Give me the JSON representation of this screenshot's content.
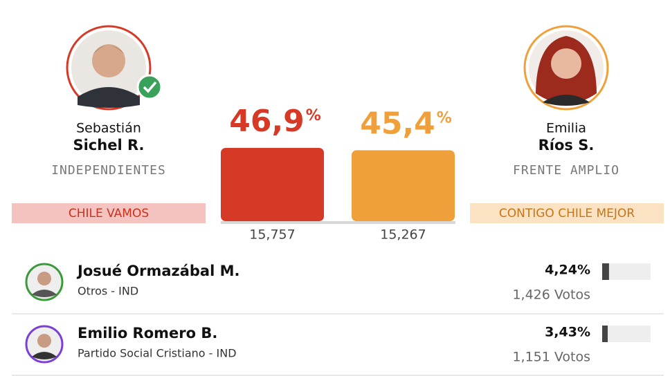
{
  "main": [
    {
      "first": "Sebastián",
      "last": "Sichel R.",
      "party": "INDEPENDIENTES",
      "coalition": "CHILE VAMOS",
      "percent": 46.9,
      "percent_label": "46,9",
      "votes": "15,757",
      "color": "#d63a26"
    },
    {
      "first": "Emilia",
      "last": "Ríos S.",
      "party": "FRENTE AMPLIO",
      "coalition": "CONTIGO CHILE MEJOR",
      "percent": 45.4,
      "percent_label": "45,4",
      "votes": "15,267",
      "color": "#f0a03a"
    }
  ],
  "percent_sign": "%",
  "others": [
    {
      "name": "Josué Ormazábal M.",
      "party": "Otros - IND",
      "percent": 4.24,
      "percent_label": "4,24%",
      "votes": "1,426 Votos",
      "color": "#3a9a3a"
    },
    {
      "name": "Emilio Romero B.",
      "party": "Partido Social Cristiano - IND",
      "percent": 3.43,
      "percent_label": "3,43%",
      "votes": "1,151 Votos",
      "color": "#7a3fd6"
    }
  ]
}
